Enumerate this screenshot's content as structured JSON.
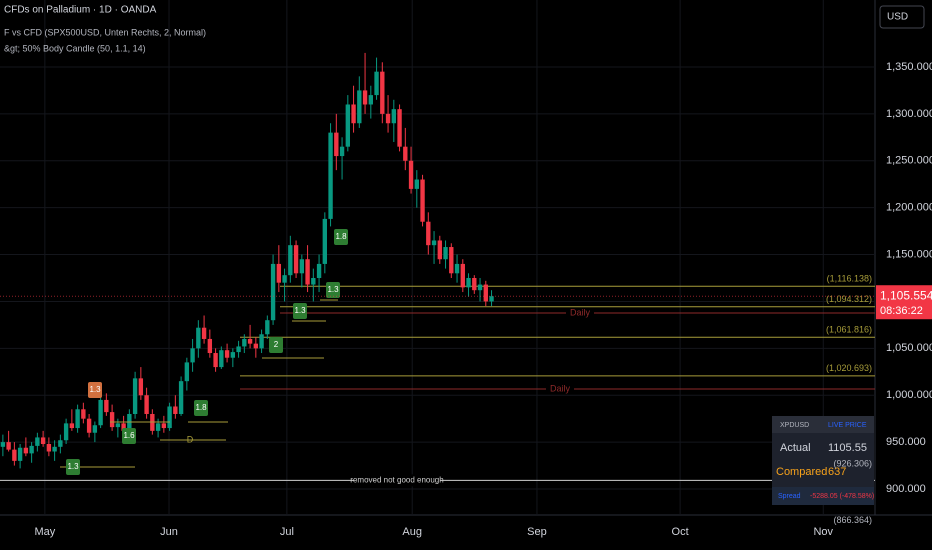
{
  "header": {
    "title": "CFDs on Palladium · 1D · OANDA",
    "indicators": [
      "F vs CFD (SPX500USD, Unten Rechts, 2, Normal)",
      "&gt; 50% Body Candle  (50, 1.1, 14)"
    ],
    "currency": "USD"
  },
  "chart_data": {
    "type": "candlestick",
    "up_color": "#089981",
    "down_color": "#f23645",
    "grid": true,
    "xlim": [
      -0.5,
      151.7
    ],
    "ylim": [
      872.3,
      1421.4
    ],
    "xticks": [
      {
        "value": 7.3,
        "label": "May"
      },
      {
        "value": 28.9,
        "label": "Jun"
      },
      {
        "value": 49.4,
        "label": "Jul"
      },
      {
        "value": 71.2,
        "label": "Aug"
      },
      {
        "value": 92.9,
        "label": "Sep"
      },
      {
        "value": 117.8,
        "label": "Oct"
      },
      {
        "value": 142.7,
        "label": "Nov"
      }
    ],
    "yticks": [
      {
        "value": 900,
        "label": "900.000"
      },
      {
        "value": 950,
        "label": "950.000"
      },
      {
        "value": 1000,
        "label": "1,000.000"
      },
      {
        "value": 1050,
        "label": "1,050.000"
      },
      {
        "value": 1100,
        "label": "1,100.000"
      },
      {
        "value": 1150,
        "label": "1,150.000"
      },
      {
        "value": 1200,
        "label": "1,200.000"
      },
      {
        "value": 1250,
        "label": "1,250.000"
      },
      {
        "value": 1300,
        "label": "1,300.000"
      },
      {
        "value": 1350,
        "label": "1,350.000"
      }
    ],
    "ohlc": [
      [
        945,
        958,
        935,
        950
      ],
      [
        950,
        962,
        940,
        942
      ],
      [
        942,
        950,
        925,
        930
      ],
      [
        930,
        948,
        922,
        944
      ],
      [
        944,
        955,
        935,
        938
      ],
      [
        938,
        950,
        928,
        946
      ],
      [
        946,
        960,
        940,
        955
      ],
      [
        955,
        962,
        945,
        948
      ],
      [
        948,
        955,
        935,
        940
      ],
      [
        940,
        952,
        930,
        945
      ],
      [
        945,
        958,
        938,
        952
      ],
      [
        952,
        975,
        948,
        970
      ],
      [
        970,
        985,
        962,
        965
      ],
      [
        965,
        990,
        960,
        985
      ],
      [
        985,
        992,
        970,
        975
      ],
      [
        975,
        980,
        955,
        960
      ],
      [
        960,
        972,
        950,
        968
      ],
      [
        968,
        1000,
        965,
        995
      ],
      [
        995,
        1002,
        978,
        982
      ],
      [
        982,
        990,
        962,
        966
      ],
      [
        966,
        975,
        955,
        970
      ],
      [
        970,
        978,
        958,
        962
      ],
      [
        962,
        985,
        958,
        980
      ],
      [
        980,
        1025,
        975,
        1018
      ],
      [
        1018,
        1030,
        995,
        1000
      ],
      [
        1000,
        1008,
        975,
        980
      ],
      [
        980,
        985,
        958,
        962
      ],
      [
        962,
        975,
        955,
        970
      ],
      [
        970,
        978,
        960,
        965
      ],
      [
        965,
        992,
        962,
        988
      ],
      [
        988,
        1000,
        975,
        980
      ],
      [
        980,
        1020,
        978,
        1015
      ],
      [
        1015,
        1040,
        1005,
        1035
      ],
      [
        1035,
        1060,
        1025,
        1050
      ],
      [
        1050,
        1080,
        1040,
        1072
      ],
      [
        1072,
        1085,
        1055,
        1060
      ],
      [
        1060,
        1070,
        1040,
        1045
      ],
      [
        1045,
        1050,
        1025,
        1030
      ],
      [
        1030,
        1052,
        1028,
        1048
      ],
      [
        1048,
        1055,
        1035,
        1040
      ],
      [
        1040,
        1050,
        1030,
        1046
      ],
      [
        1046,
        1058,
        1040,
        1052
      ],
      [
        1052,
        1065,
        1045,
        1060
      ],
      [
        1060,
        1075,
        1050,
        1055
      ],
      [
        1055,
        1062,
        1040,
        1050
      ],
      [
        1050,
        1070,
        1045,
        1065
      ],
      [
        1065,
        1085,
        1060,
        1080
      ],
      [
        1080,
        1150,
        1075,
        1140
      ],
      [
        1140,
        1160,
        1110,
        1120
      ],
      [
        1120,
        1135,
        1100,
        1128
      ],
      [
        1128,
        1170,
        1120,
        1160
      ],
      [
        1160,
        1165,
        1125,
        1130
      ],
      [
        1130,
        1150,
        1115,
        1145
      ],
      [
        1145,
        1160,
        1110,
        1118
      ],
      [
        1118,
        1135,
        1100,
        1125
      ],
      [
        1125,
        1150,
        1110,
        1140
      ],
      [
        1140,
        1195,
        1130,
        1188
      ],
      [
        1188,
        1290,
        1180,
        1280
      ],
      [
        1280,
        1300,
        1240,
        1255
      ],
      [
        1255,
        1275,
        1230,
        1265
      ],
      [
        1265,
        1320,
        1260,
        1310
      ],
      [
        1310,
        1330,
        1280,
        1290
      ],
      [
        1290,
        1340,
        1285,
        1325
      ],
      [
        1325,
        1365,
        1300,
        1310
      ],
      [
        1310,
        1330,
        1295,
        1320
      ],
      [
        1320,
        1360,
        1315,
        1345
      ],
      [
        1345,
        1355,
        1290,
        1300
      ],
      [
        1300,
        1320,
        1280,
        1290
      ],
      [
        1290,
        1315,
        1270,
        1305
      ],
      [
        1305,
        1310,
        1260,
        1265
      ],
      [
        1265,
        1285,
        1240,
        1250
      ],
      [
        1250,
        1265,
        1215,
        1220
      ],
      [
        1220,
        1240,
        1200,
        1230
      ],
      [
        1230,
        1235,
        1180,
        1185
      ],
      [
        1185,
        1195,
        1150,
        1160
      ],
      [
        1160,
        1175,
        1140,
        1165
      ],
      [
        1165,
        1170,
        1140,
        1145
      ],
      [
        1145,
        1165,
        1135,
        1158
      ],
      [
        1158,
        1162,
        1125,
        1130
      ],
      [
        1130,
        1150,
        1120,
        1140
      ],
      [
        1140,
        1145,
        1110,
        1115
      ],
      [
        1115,
        1130,
        1105,
        1125
      ],
      [
        1125,
        1128,
        1108,
        1112
      ],
      [
        1112,
        1125,
        1100,
        1118
      ],
      [
        1118,
        1122,
        1095,
        1100
      ],
      [
        1100,
        1112,
        1095,
        1105.554
      ]
    ],
    "levels": [
      {
        "value": 1116.138,
        "label": "(1,116.138)",
        "color": "#a89d3a"
      },
      {
        "value": 1094.312,
        "label": "(1,094.312)",
        "color": "#a89d3a"
      },
      {
        "value": 1061.816,
        "label": "(1,061.816)",
        "color": "#a89d3a"
      },
      {
        "value": 1020.693,
        "label": "(1,020.693)",
        "color": "#a89d3a"
      }
    ],
    "daily_levels": [
      {
        "value": 1087.7,
        "label": "Daily",
        "color": "#8e2a2a"
      },
      {
        "value": 1006.7,
        "label": "Daily",
        "color": "#8e2a2a"
      }
    ],
    "removed_level": {
      "value": 909.2,
      "label": "removed not good enough",
      "color": "#cfcfcf"
    },
    "side_labels": [
      {
        "value": 926.306,
        "label": "(926.306)"
      },
      {
        "value": 866.364,
        "label": "(866.364)"
      }
    ],
    "signals": [
      {
        "label": "1.3",
        "color": "#2e7d32"
      },
      {
        "label": "1.3",
        "color": "#d2703f"
      },
      {
        "label": "1.6",
        "color": "#2e7d32"
      },
      {
        "label": "1.8",
        "color": "#2e7d32"
      },
      {
        "label": "2",
        "color": "#2e7d32"
      },
      {
        "label": "1.3",
        "color": "#2e7d32"
      },
      {
        "label": "1.3",
        "color": "#2e7d32"
      },
      {
        "label": "1.8",
        "color": "#2e7d32"
      }
    ],
    "marker_d": "D",
    "last_price": {
      "value": 1105.554,
      "label": "1,105.554"
    },
    "countdown": "08:36:22"
  },
  "table": {
    "rows": [
      [
        "XPDUSD",
        "LIVE PRICE"
      ],
      [
        "Actual",
        "1105.55"
      ],
      [
        "Compared",
        "637"
      ],
      [
        "Spread",
        "-5288.05 (-478.58%)"
      ]
    ]
  }
}
